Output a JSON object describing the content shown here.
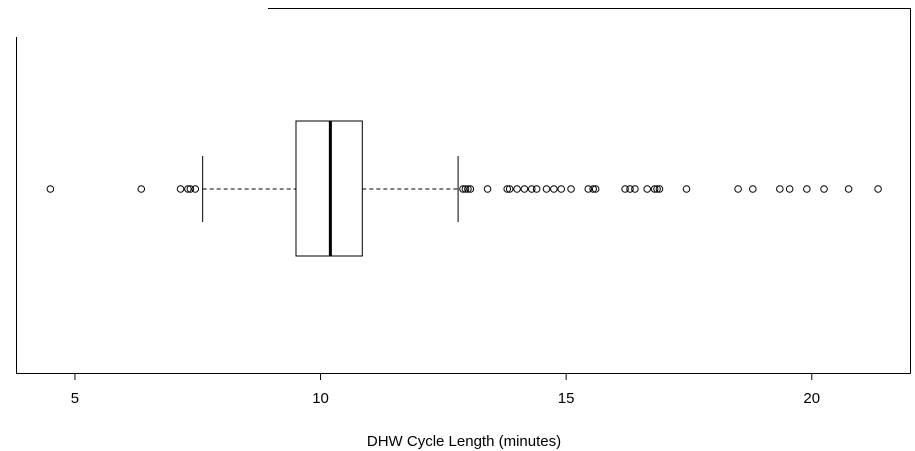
{
  "chart_data": {
    "type": "boxplot",
    "orientation": "horizontal",
    "xlabel": "DHW Cycle Length (minutes)",
    "ylabel": "",
    "xlim": [
      3.8,
      22.0
    ],
    "xticks": [
      5,
      10,
      15,
      20
    ],
    "grid": false,
    "box": {
      "whisker_low": 7.6,
      "q1": 9.5,
      "median": 10.2,
      "q3": 10.85,
      "whisker_high": 12.8
    },
    "outliers": [
      4.5,
      6.35,
      7.15,
      7.3,
      7.35,
      7.45,
      12.9,
      12.95,
      13.0,
      13.05,
      13.4,
      13.8,
      13.85,
      14.0,
      14.15,
      14.3,
      14.4,
      14.6,
      14.75,
      14.9,
      15.1,
      15.45,
      15.55,
      15.6,
      16.2,
      16.3,
      16.4,
      16.65,
      16.8,
      16.85,
      16.9,
      17.45,
      18.5,
      18.8,
      19.35,
      19.55,
      19.9,
      20.25,
      20.75,
      21.35
    ]
  },
  "colors": {
    "ink": "#000000",
    "background": "#ffffff"
  }
}
